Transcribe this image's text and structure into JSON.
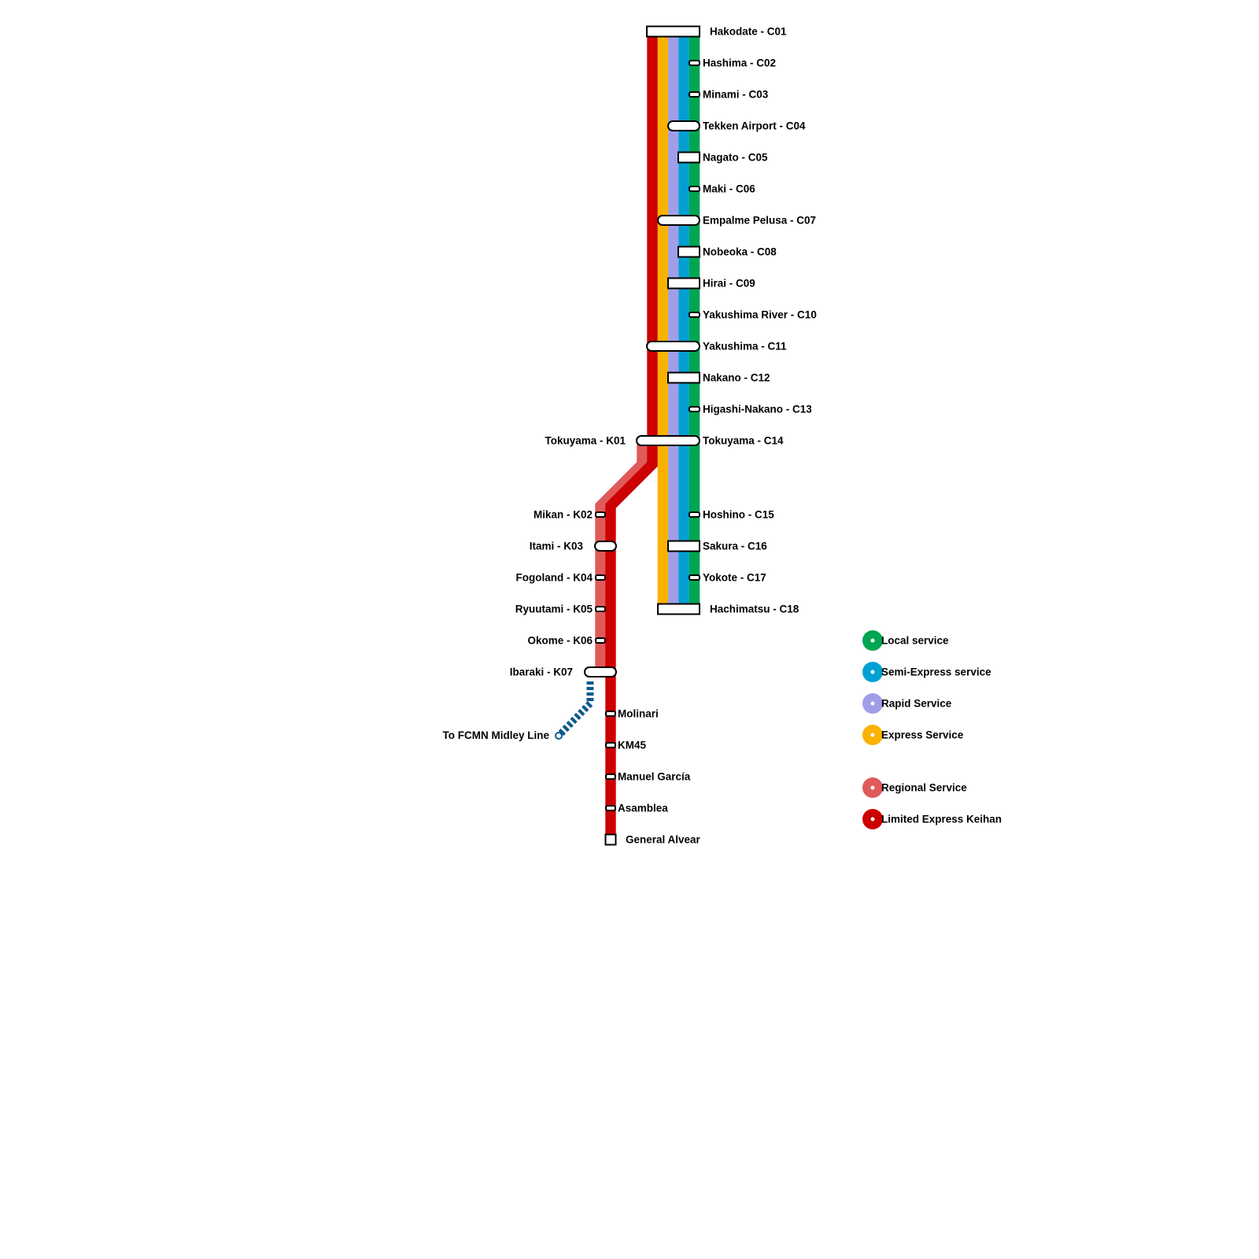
{
  "colors": {
    "local": "#00a651",
    "semi_express": "#00a0d2",
    "rapid": "#a09ee8",
    "express": "#f9b200",
    "regional": "#e05a5a",
    "limited_express": "#cc0000",
    "midley": "#0a5a8c",
    "station_fill": "#ffffff",
    "station_stroke": "#000000"
  },
  "stations_c": [
    {
      "label": "Hakodate - C01",
      "type": "terminal"
    },
    {
      "label": "Hashima - C02",
      "type": "local"
    },
    {
      "label": "Minami - C03",
      "type": "local"
    },
    {
      "label": "Tekken Airport - C04",
      "type": "rapid"
    },
    {
      "label": "Nagato - C05",
      "type": "semi"
    },
    {
      "label": "Maki - C06",
      "type": "local"
    },
    {
      "label": "Empalme Pelusa - C07",
      "type": "express"
    },
    {
      "label": "Nobeoka - C08",
      "type": "semi"
    },
    {
      "label": "Hirai - C09",
      "type": "rapid"
    },
    {
      "label": "Yakushima River - C10",
      "type": "local"
    },
    {
      "label": "Yakushima - C11",
      "type": "all"
    },
    {
      "label": "Nakano - C12",
      "type": "rapid"
    },
    {
      "label": "Higashi-Nakano - C13",
      "type": "local"
    },
    {
      "label": "Tokuyama - C14",
      "type": "interchange"
    },
    {
      "label": "Hoshino - C15",
      "type": "local"
    },
    {
      "label": "Sakura - C16",
      "type": "rapid"
    },
    {
      "label": "Yokote - C17",
      "type": "local"
    },
    {
      "label": "Hachimatsu - C18",
      "type": "terminal"
    }
  ],
  "stations_k": [
    {
      "label": "Tokuyama - K01",
      "type": "interchange"
    },
    {
      "label": "Mikan - K02",
      "type": "regional"
    },
    {
      "label": "Itami - K03",
      "type": "both"
    },
    {
      "label": "Fogoland - K04",
      "type": "regional"
    },
    {
      "label": "Ryuutami - K05",
      "type": "regional"
    },
    {
      "label": "Okome - K06",
      "type": "regional"
    },
    {
      "label": "Ibaraki - K07",
      "type": "both"
    }
  ],
  "stations_south": [
    {
      "label": "Molinari",
      "type": "local"
    },
    {
      "label": "KM45",
      "type": "local"
    },
    {
      "label": "Manuel García",
      "type": "local"
    },
    {
      "label": "Asamblea",
      "type": "local"
    },
    {
      "label": "General Alvear",
      "type": "terminal"
    }
  ],
  "branch_label": "To FCMN Midley Line",
  "legend": [
    {
      "label": "Local service",
      "color": "#00a651"
    },
    {
      "label": "Semi-Express service",
      "color": "#00a0d2"
    },
    {
      "label": "Rapid Service",
      "color": "#a09ee8"
    },
    {
      "label": "Express Service",
      "color": "#f9b200"
    },
    {
      "label": "Regional Service",
      "color": "#e05a5a"
    },
    {
      "label": "Limited Express Keihan",
      "color": "#cc0000"
    }
  ]
}
